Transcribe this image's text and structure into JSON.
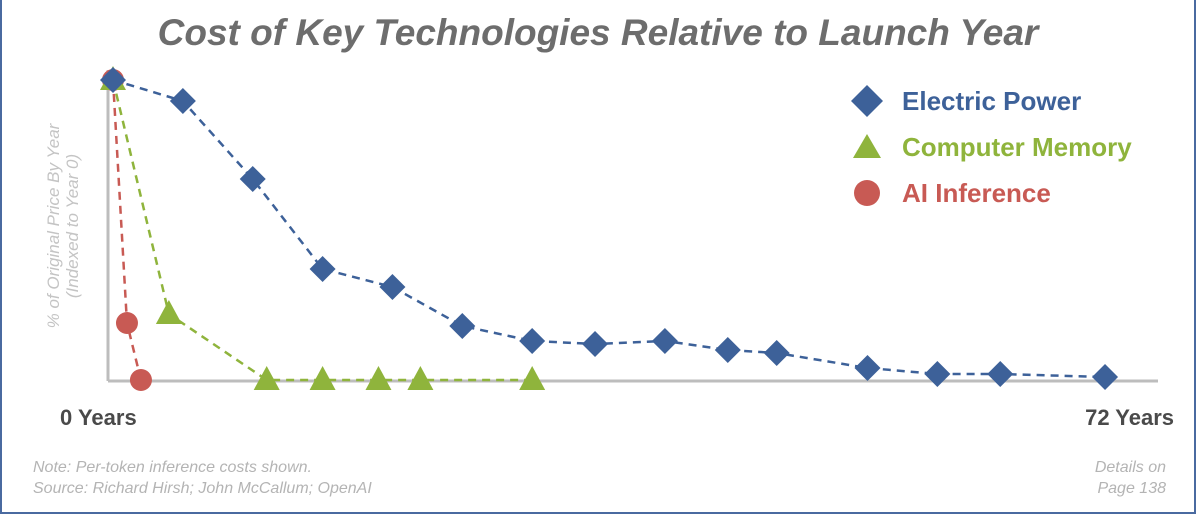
{
  "chart_data": {
    "type": "line",
    "title": "Cost of Key Technologies Relative to Launch Year",
    "ylabel_line1": "% of Original Price By Year",
    "ylabel_line2": "(Indexed to Year 0)",
    "xtick_start": "0 Years",
    "xtick_end": "72 Years",
    "xlim": [
      0,
      72
    ],
    "ylim": [
      0,
      100
    ],
    "grid": false,
    "legend_position": "top-right",
    "series": [
      {
        "name": "Electric Power",
        "color": "#3d6199",
        "marker": "diamond",
        "x": [
          0,
          5,
          10,
          15,
          20,
          25,
          30,
          34.5,
          39.5,
          44,
          47.5,
          54,
          59,
          63.5,
          71
        ],
        "y": [
          100,
          93,
          67,
          37,
          31,
          18,
          13,
          12,
          13,
          10,
          9,
          4,
          2,
          2,
          1
        ]
      },
      {
        "name": "Computer Memory",
        "color": "#8fb43c",
        "marker": "triangle",
        "x": [
          0,
          4,
          11,
          15,
          19,
          22,
          30
        ],
        "y": [
          100,
          22,
          0,
          0,
          0,
          0,
          0
        ]
      },
      {
        "name": "AI Inference",
        "color": "#c85a54",
        "marker": "circle",
        "x": [
          0,
          1,
          2
        ],
        "y": [
          100,
          19,
          0
        ]
      }
    ]
  },
  "notes": {
    "line1": "Note: Per-token inference costs shown.",
    "line2": "Source: Richard Hirsh; John McCallum; OpenAI"
  },
  "details": {
    "line1": "Details on",
    "line2": "Page 138"
  }
}
